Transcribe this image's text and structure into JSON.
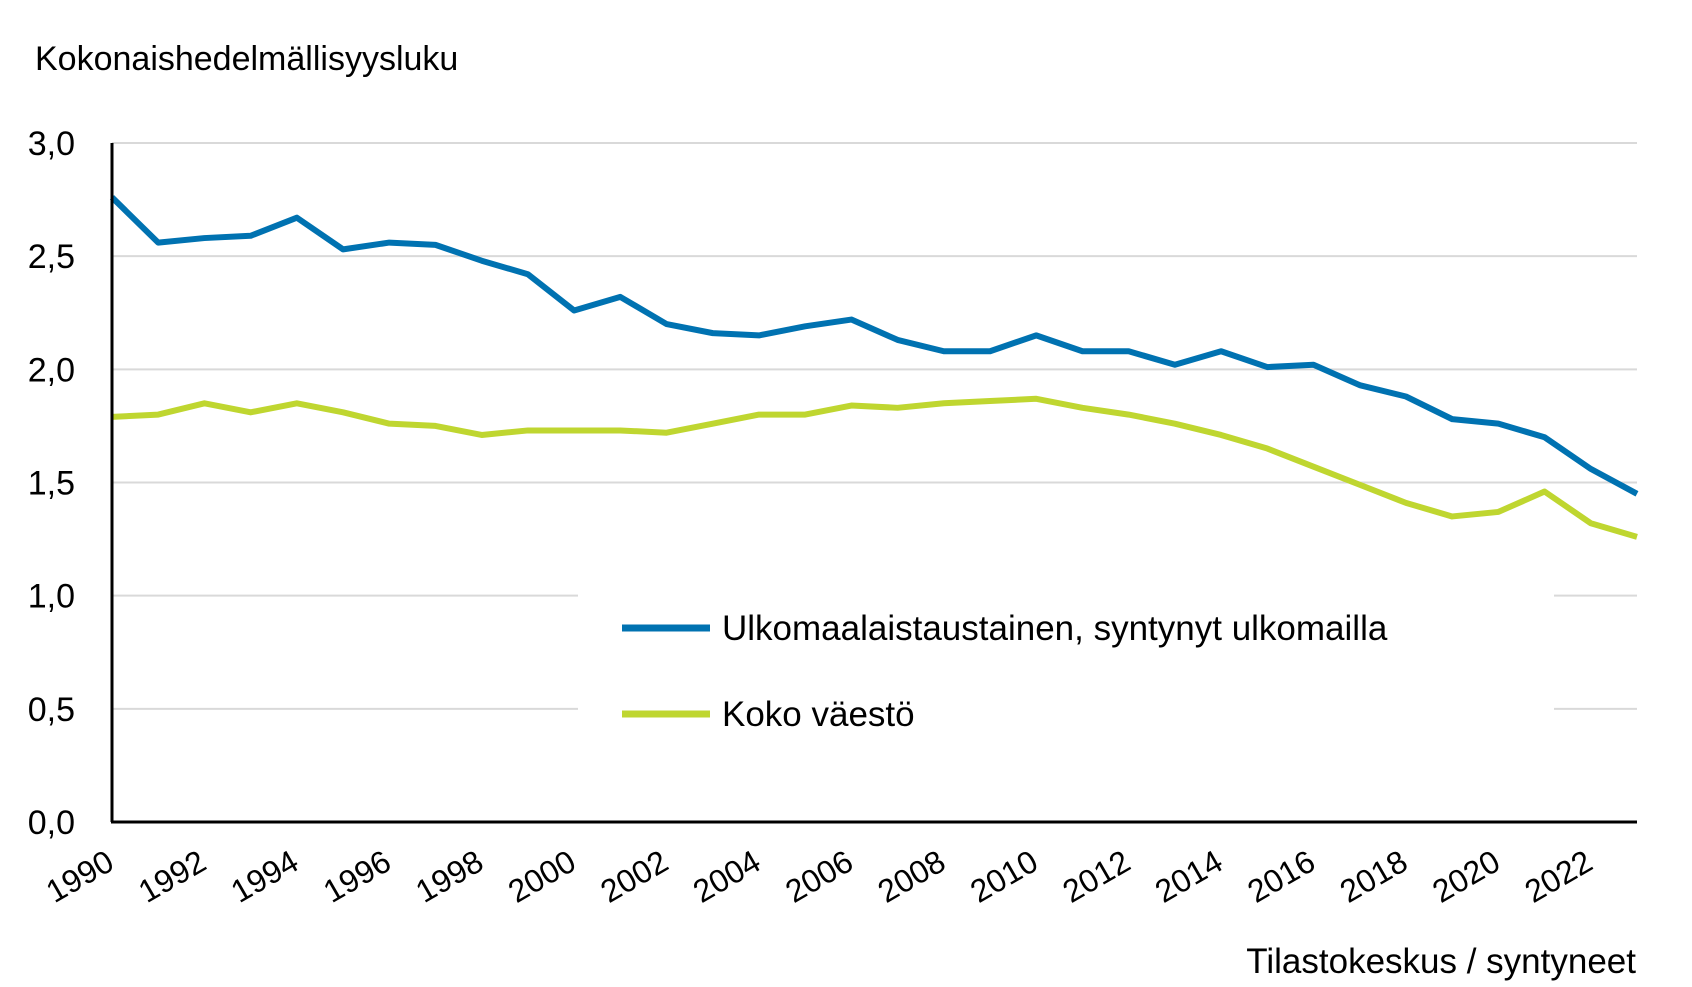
{
  "chart_data": {
    "type": "line",
    "title": "",
    "ylabel": "Kokonaishedelmällisyysluku",
    "xlabel": "",
    "source": "Tilastokeskus / syntyneet",
    "ylim": [
      0,
      3
    ],
    "yticks": [
      "0,0",
      "0,5",
      "1,0",
      "1,5",
      "2,0",
      "2,5",
      "3,0"
    ],
    "ytick_values": [
      0,
      0.5,
      1,
      1.5,
      2,
      2.5,
      3
    ],
    "xlim": [
      1990,
      2023
    ],
    "xticks": [
      "1990",
      "1992",
      "1994",
      "1996",
      "1998",
      "2000",
      "2002",
      "2004",
      "2006",
      "2008",
      "2010",
      "2012",
      "2014",
      "2016",
      "2018",
      "2020",
      "2022"
    ],
    "grid": true,
    "legend_position": "lower-right",
    "x": [
      1990,
      1991,
      1992,
      1993,
      1994,
      1995,
      1996,
      1997,
      1998,
      1999,
      2000,
      2001,
      2002,
      2003,
      2004,
      2005,
      2006,
      2007,
      2008,
      2009,
      2010,
      2011,
      2012,
      2013,
      2014,
      2015,
      2016,
      2017,
      2018,
      2019,
      2020,
      2021,
      2022,
      2023
    ],
    "series": [
      {
        "name": "Ulkomaalaistaustainen, syntynyt ulkomailla",
        "color": "#0072b1",
        "values": [
          2.76,
          2.56,
          2.58,
          2.59,
          2.67,
          2.53,
          2.56,
          2.55,
          2.48,
          2.42,
          2.26,
          2.32,
          2.2,
          2.16,
          2.15,
          2.19,
          2.22,
          2.13,
          2.08,
          2.08,
          2.15,
          2.08,
          2.08,
          2.02,
          2.08,
          2.01,
          2.02,
          1.93,
          1.88,
          1.78,
          1.76,
          1.7,
          1.56,
          1.45
        ]
      },
      {
        "name": "Koko väestö",
        "color": "#bfd630",
        "values": [
          1.79,
          1.8,
          1.85,
          1.81,
          1.85,
          1.81,
          1.76,
          1.75,
          1.71,
          1.73,
          1.73,
          1.73,
          1.72,
          1.76,
          1.8,
          1.8,
          1.84,
          1.83,
          1.85,
          1.86,
          1.87,
          1.83,
          1.8,
          1.76,
          1.71,
          1.65,
          1.57,
          1.49,
          1.41,
          1.35,
          1.37,
          1.46,
          1.32,
          1.26
        ]
      }
    ]
  }
}
